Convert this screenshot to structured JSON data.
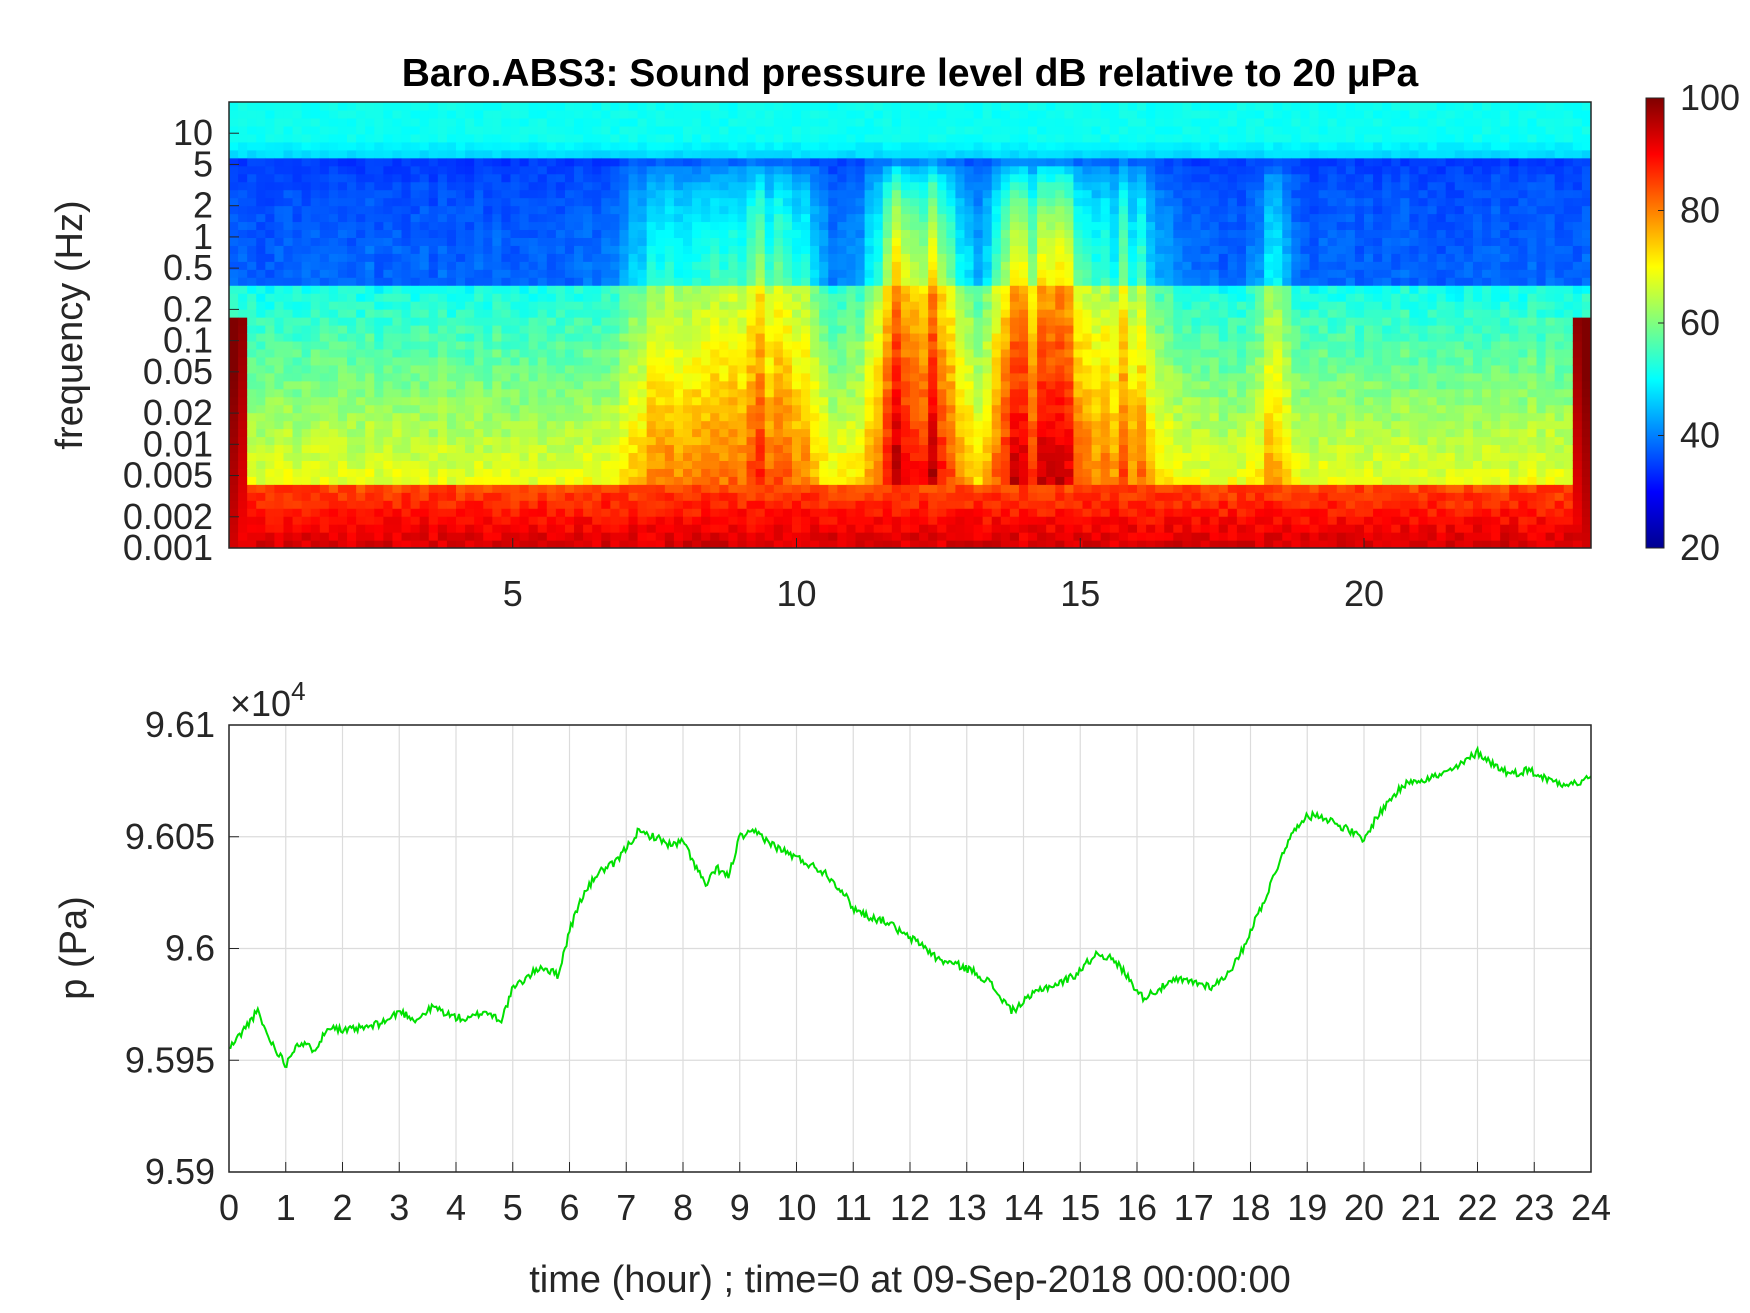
{
  "chart_data": [
    {
      "type": "heatmap",
      "title": "Baro.ABS3: Sound pressure level dB relative to 20 μPa",
      "xlabel": "",
      "ylabel": "frequency (Hz)",
      "xlim": [
        0,
        24
      ],
      "xticks": [
        5,
        10,
        15,
        20
      ],
      "ylim": [
        0.001,
        20
      ],
      "yscale": "log",
      "yticks": [
        0.001,
        0.002,
        0.005,
        0.01,
        0.02,
        0.05,
        0.1,
        0.2,
        0.5,
        1,
        2,
        5,
        10
      ],
      "yticklabels": [
        "0.001",
        "0.002",
        "0.005",
        "0.01",
        "0.02",
        "0.05",
        "0.1",
        "0.2",
        "0.5",
        "1",
        "2",
        "5",
        "10"
      ],
      "colormap": "jet",
      "colorbar": {
        "range": [
          20,
          100
        ],
        "ticks": [
          "20",
          "40",
          "60",
          "80",
          "100"
        ]
      },
      "description_levels": {
        "high_freq_band_dB": 50,
        "mid_band_dB_quiet": 30,
        "low_freq_band_dB": 90,
        "active_hours": [
          [
            8,
            10
          ],
          [
            11.5,
            13
          ],
          [
            13.5,
            15
          ],
          [
            15.5,
            16.5
          ]
        ]
      }
    },
    {
      "type": "line",
      "xlabel": "time (hour) ; time=0 at 09-Sep-2018 00:00:00",
      "ylabel": "p (Pa)",
      "exponent_label": "×10",
      "exponent_power": "4",
      "xlim": [
        0,
        24
      ],
      "ylim": [
        9.59,
        9.61
      ],
      "xticks": [
        "0",
        "1",
        "2",
        "3",
        "4",
        "5",
        "6",
        "7",
        "8",
        "9",
        "10",
        "11",
        "12",
        "13",
        "14",
        "15",
        "16",
        "17",
        "18",
        "19",
        "20",
        "21",
        "22",
        "23",
        "24"
      ],
      "yticks": [
        "9.59",
        "9.595",
        "9.6",
        "9.605",
        "9.61"
      ],
      "grid": true,
      "series": [
        {
          "color": "#00e000",
          "x": [
            0,
            0.3,
            0.5,
            0.7,
            1.0,
            1.2,
            1.5,
            1.8,
            2.0,
            2.5,
            2.8,
            3.0,
            3.3,
            3.6,
            3.9,
            4.2,
            4.5,
            4.8,
            5.0,
            5.3,
            5.5,
            5.8,
            6.0,
            6.2,
            6.5,
            6.8,
            7.0,
            7.2,
            7.5,
            7.8,
            8.0,
            8.2,
            8.4,
            8.6,
            8.8,
            9.0,
            9.3,
            9.6,
            9.9,
            10.2,
            10.5,
            10.8,
            11.0,
            11.3,
            11.6,
            11.9,
            12.2,
            12.5,
            12.8,
            13.1,
            13.4,
            13.6,
            13.8,
            14.0,
            14.3,
            14.6,
            14.9,
            15.1,
            15.3,
            15.5,
            15.7,
            15.9,
            16.1,
            16.4,
            16.7,
            17.0,
            17.3,
            17.5,
            17.8,
            18.0,
            18.3,
            18.6,
            18.9,
            19.2,
            19.5,
            19.8,
            20.0,
            20.2,
            20.5,
            20.8,
            21.1,
            21.4,
            21.7,
            22.0,
            22.3,
            22.6,
            22.9,
            23.2,
            23.5,
            23.8,
            24.0
          ],
          "y": [
            9.5955,
            9.5965,
            9.5972,
            9.596,
            9.5948,
            9.5958,
            9.5955,
            9.5966,
            9.5963,
            9.5965,
            9.5968,
            9.5972,
            9.5968,
            9.5974,
            9.597,
            9.5968,
            9.5972,
            9.5968,
            9.5982,
            9.5988,
            9.5992,
            9.5988,
            9.6008,
            9.6022,
            9.6034,
            9.6038,
            9.6045,
            9.6052,
            9.605,
            9.6046,
            9.6048,
            9.6038,
            9.6028,
            9.6036,
            9.6032,
            9.605,
            9.6052,
            9.6046,
            9.6042,
            9.6038,
            9.6034,
            9.6026,
            9.6018,
            9.6014,
            9.6012,
            9.6006,
            9.6002,
            9.5995,
            9.5993,
            9.599,
            9.5985,
            9.5978,
            9.5972,
            9.5976,
            9.5982,
            9.5984,
            9.5988,
            9.5993,
            9.5998,
            9.5996,
            9.5992,
            9.5985,
            9.5978,
            9.5982,
            9.5986,
            9.5985,
            9.5983,
            9.5986,
            9.5996,
            9.6008,
            9.6025,
            9.6045,
            9.6058,
            9.606,
            9.6056,
            9.6052,
            9.6048,
            9.6058,
            9.6068,
            9.6075,
            9.6076,
            9.6078,
            9.6082,
            9.6088,
            9.6082,
            9.6078,
            9.608,
            9.6076,
            9.6074,
            9.6074,
            9.6077
          ]
        }
      ]
    }
  ]
}
